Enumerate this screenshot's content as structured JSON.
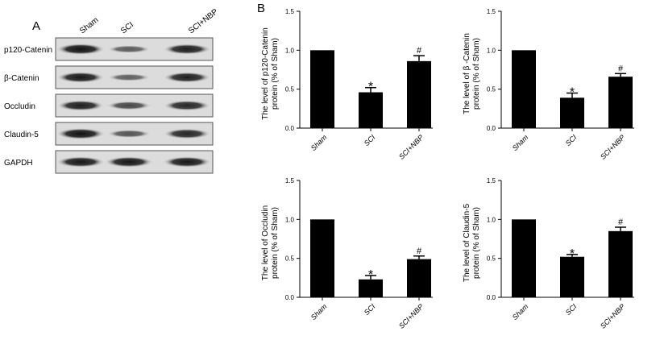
{
  "panels": {
    "a": "A",
    "b": "B"
  },
  "blot": {
    "lanes": [
      "Sham",
      "SCI",
      "SCI+NBP"
    ],
    "bands": [
      {
        "label": "p120-Catenin",
        "intensity": [
          1.0,
          0.45,
          0.9
        ]
      },
      {
        "label": "β-Catenin",
        "intensity": [
          0.95,
          0.4,
          0.9
        ]
      },
      {
        "label": "Occludin",
        "intensity": [
          0.9,
          0.6,
          0.85
        ]
      },
      {
        "label": "Claudin-5",
        "intensity": [
          1.0,
          0.5,
          0.85
        ]
      },
      {
        "label": "GAPDH",
        "intensity": [
          0.95,
          0.95,
          0.95
        ]
      }
    ]
  },
  "chart_data": [
    {
      "type": "bar",
      "categories": [
        "Sham",
        "SCI",
        "SCI+NBP"
      ],
      "values": [
        1.0,
        0.46,
        0.86
      ],
      "errors": [
        0,
        0.06,
        0.07
      ],
      "markers": [
        "",
        "*",
        "#"
      ],
      "ylabel_lines": [
        "The level of p120-Catenin",
        "protein (% of Sham)"
      ],
      "ylim": [
        0,
        1.5
      ],
      "yticks": [
        "0.0",
        "0.5",
        "1.0",
        "1.5"
      ]
    },
    {
      "type": "bar",
      "categories": [
        "Sham",
        "SCI",
        "SCI+NBP"
      ],
      "values": [
        1.0,
        0.39,
        0.66
      ],
      "errors": [
        0,
        0.06,
        0.04
      ],
      "markers": [
        "",
        "*",
        "#"
      ],
      "ylabel_lines": [
        "The level of β -Catenin",
        "protein (% of Sham)"
      ],
      "ylim": [
        0,
        1.5
      ],
      "yticks": [
        "0.0",
        "0.5",
        "1.0",
        "1.5"
      ]
    },
    {
      "type": "bar",
      "categories": [
        "Sham",
        "SCI",
        "SCI+NBP"
      ],
      "values": [
        1.0,
        0.23,
        0.49
      ],
      "errors": [
        0,
        0.05,
        0.04
      ],
      "markers": [
        "",
        "*",
        "#"
      ],
      "ylabel_lines": [
        "The level of Occludin",
        "protein (% of Sham)"
      ],
      "ylim": [
        0,
        1.5
      ],
      "yticks": [
        "0.0",
        "0.5",
        "1.0",
        "1.5"
      ]
    },
    {
      "type": "bar",
      "categories": [
        "Sham",
        "SCI",
        "SCI+NBP"
      ],
      "values": [
        1.0,
        0.52,
        0.85
      ],
      "errors": [
        0,
        0.03,
        0.05
      ],
      "markers": [
        "",
        "*",
        "#"
      ],
      "ylabel_lines": [
        "The level of Claudin-5",
        "protein (% of Sham)"
      ],
      "ylim": [
        0,
        1.5
      ],
      "yticks": [
        "0.0",
        "0.5",
        "1.0",
        "1.5"
      ]
    }
  ]
}
